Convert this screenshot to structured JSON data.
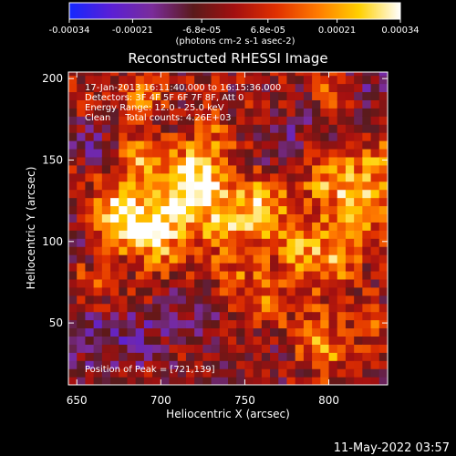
{
  "chart_data": {
    "type": "heatmap",
    "title": "Reconstructed RHESSI Image",
    "xlabel": "Heliocentric X (arcsec)",
    "ylabel": "Heliocentric Y (arcsec)",
    "xlim": [
      645,
      835
    ],
    "ylim": [
      12,
      204
    ],
    "x_ticks": [
      650,
      700,
      750,
      800
    ],
    "y_ticks": [
      50,
      100,
      150,
      200
    ],
    "annotations": [
      "17-Jan-2013 16:11:40.000 to 16:15:36.000",
      "Detectors: 3F 4F 5F 6F 7F 8F, Att 0",
      "Energy Range: 12.0 - 25.0 keV",
      "Clean     Total counts: 4.26E+03"
    ],
    "peak_label": "Position of Peak = [721,139]",
    "colorbar": {
      "ticks": [
        "-0.00034",
        "-0.00021",
        "-6.8e-05",
        "6.8e-05",
        "0.00021",
        "0.00034"
      ],
      "min": -0.00034,
      "max": 0.00034,
      "units_label": "(photons cm-2 s-1 asec-2)",
      "stops": [
        "#1428ff",
        "#5a1fd6",
        "#7a2c9a",
        "#5a1a1a",
        "#a41010",
        "#e03000",
        "#ff7a00",
        "#ffd000",
        "#ffffff"
      ]
    },
    "peak": [
      721,
      139
    ],
    "blobs": [
      {
        "x": 721,
        "y": 139,
        "v": 1.0,
        "s": 12
      },
      {
        "x": 705,
        "y": 120,
        "v": 0.75,
        "s": 14
      },
      {
        "x": 740,
        "y": 112,
        "v": 0.65,
        "s": 12
      },
      {
        "x": 680,
        "y": 110,
        "v": 0.7,
        "s": 12
      },
      {
        "x": 670,
        "y": 125,
        "v": 0.55,
        "s": 10
      },
      {
        "x": 690,
        "y": 150,
        "v": 0.6,
        "s": 10
      },
      {
        "x": 760,
        "y": 125,
        "v": 0.6,
        "s": 12
      },
      {
        "x": 780,
        "y": 100,
        "v": 0.5,
        "s": 14
      },
      {
        "x": 800,
        "y": 85,
        "v": 0.55,
        "s": 12
      },
      {
        "x": 820,
        "y": 125,
        "v": 0.6,
        "s": 12
      },
      {
        "x": 800,
        "y": 140,
        "v": 0.55,
        "s": 12
      },
      {
        "x": 815,
        "y": 110,
        "v": 0.45,
        "s": 10
      },
      {
        "x": 830,
        "y": 150,
        "v": 0.45,
        "s": 10
      },
      {
        "x": 730,
        "y": 165,
        "v": 0.4,
        "s": 10
      },
      {
        "x": 800,
        "y": 190,
        "v": 0.45,
        "s": 8
      },
      {
        "x": 700,
        "y": 95,
        "v": 0.45,
        "s": 12
      },
      {
        "x": 745,
        "y": 80,
        "v": 0.35,
        "s": 12
      },
      {
        "x": 760,
        "y": 60,
        "v": 0.4,
        "s": 10
      },
      {
        "x": 790,
        "y": 45,
        "v": 0.45,
        "s": 10
      },
      {
        "x": 800,
        "y": 30,
        "v": 0.4,
        "s": 10
      },
      {
        "x": 825,
        "y": 50,
        "v": 0.35,
        "s": 8
      },
      {
        "x": 690,
        "y": 190,
        "v": 0.45,
        "s": 8
      },
      {
        "x": 660,
        "y": 75,
        "v": 0.35,
        "s": 10
      },
      {
        "x": 690,
        "y": 40,
        "v": -0.3,
        "s": 14
      },
      {
        "x": 760,
        "y": 30,
        "v": -0.2,
        "s": 12
      },
      {
        "x": 660,
        "y": 40,
        "v": -0.35,
        "s": 14
      },
      {
        "x": 720,
        "y": 60,
        "v": -0.25,
        "s": 12
      },
      {
        "x": 790,
        "y": 175,
        "v": -0.3,
        "s": 12
      },
      {
        "x": 660,
        "y": 160,
        "v": -0.3,
        "s": 10
      },
      {
        "x": 830,
        "y": 195,
        "v": -0.35,
        "s": 10
      },
      {
        "x": 770,
        "y": 155,
        "v": -0.25,
        "s": 10
      },
      {
        "x": 650,
        "y": 100,
        "v": -0.25,
        "s": 10
      }
    ]
  },
  "footer": {
    "date": "11-May-2022 03:57"
  }
}
